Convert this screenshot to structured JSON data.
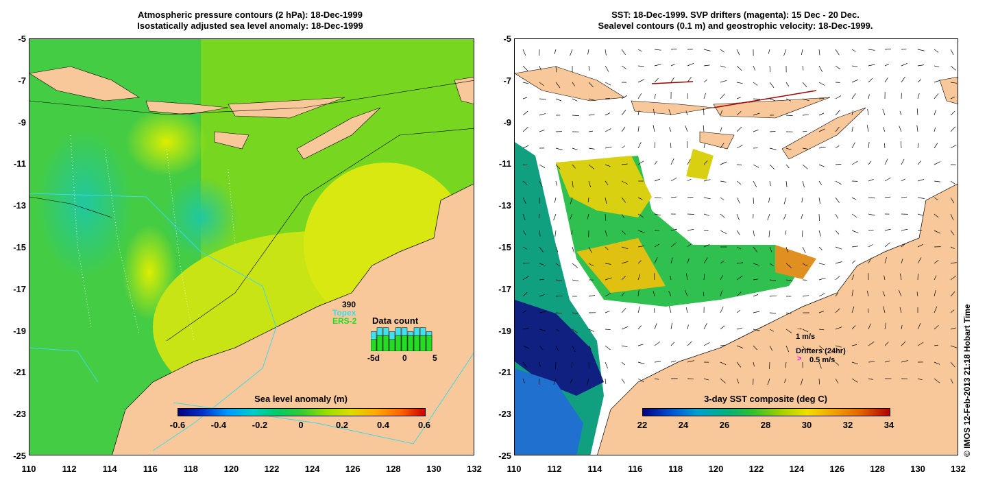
{
  "left": {
    "title_line1": "Atmospheric pressure contours (2 hPa): 18-Dec-1999",
    "title_line2": "Isostatically adjusted sea level anomaly: 18-Dec-1999",
    "colorbar_title": "Sea level anomaly (m)",
    "colorbar_labels": [
      "-0.6",
      "-0.4",
      "-0.2",
      "0",
      "0.2",
      "0.4",
      "0.6"
    ],
    "data_count": {
      "title": "Data count",
      "count": "390",
      "topex_label": "Topex",
      "ers_label": "ERS-2",
      "x_labels": [
        "-5d",
        "0",
        "5"
      ],
      "topex": [
        5,
        6,
        6,
        5,
        6,
        6,
        5,
        6,
        6,
        5
      ],
      "ers": [
        3,
        4,
        4,
        3,
        4,
        4,
        4,
        4,
        4,
        4
      ]
    }
  },
  "right": {
    "title_line1": "SST: 18-Dec-1999. SVP drifters (magenta): 15 Dec - 20 Dec.",
    "title_line2": "Sealevel contours (0.1 m) and geostrophic velocity: 18-Dec-1999.",
    "colorbar_title": "3-day SST composite (deg C)",
    "colorbar_labels": [
      "22",
      "24",
      "26",
      "28",
      "30",
      "32",
      "34"
    ],
    "velocity_scale": "1 m/s",
    "drifters_label": "Drifters (24hr)",
    "drifter_scale": "0.5 m/s"
  },
  "axes": {
    "x_ticks": [
      "110",
      "112",
      "114",
      "116",
      "118",
      "120",
      "122",
      "124",
      "126",
      "128",
      "130",
      "132"
    ],
    "y_ticks": [
      "-5",
      "-7",
      "-9",
      "-11",
      "-13",
      "-15",
      "-17",
      "-19",
      "-21",
      "-23",
      "-25"
    ]
  },
  "credit": "© IMOS 12-Feb-2013 21:18 Hobart Time",
  "colors": {
    "land": "#f8c89a",
    "sla_scale": [
      "#00007f",
      "#0033cc",
      "#0099ff",
      "#00cccc",
      "#00cc66",
      "#33cc33",
      "#99dd00",
      "#dddd00",
      "#ffaa00",
      "#ff6600",
      "#cc0000"
    ],
    "sst_scale": [
      "#000080",
      "#0050d0",
      "#00a0d0",
      "#00b080",
      "#30c030",
      "#a0d000",
      "#f0e000",
      "#f0a000",
      "#e06000",
      "#b00000"
    ]
  }
}
